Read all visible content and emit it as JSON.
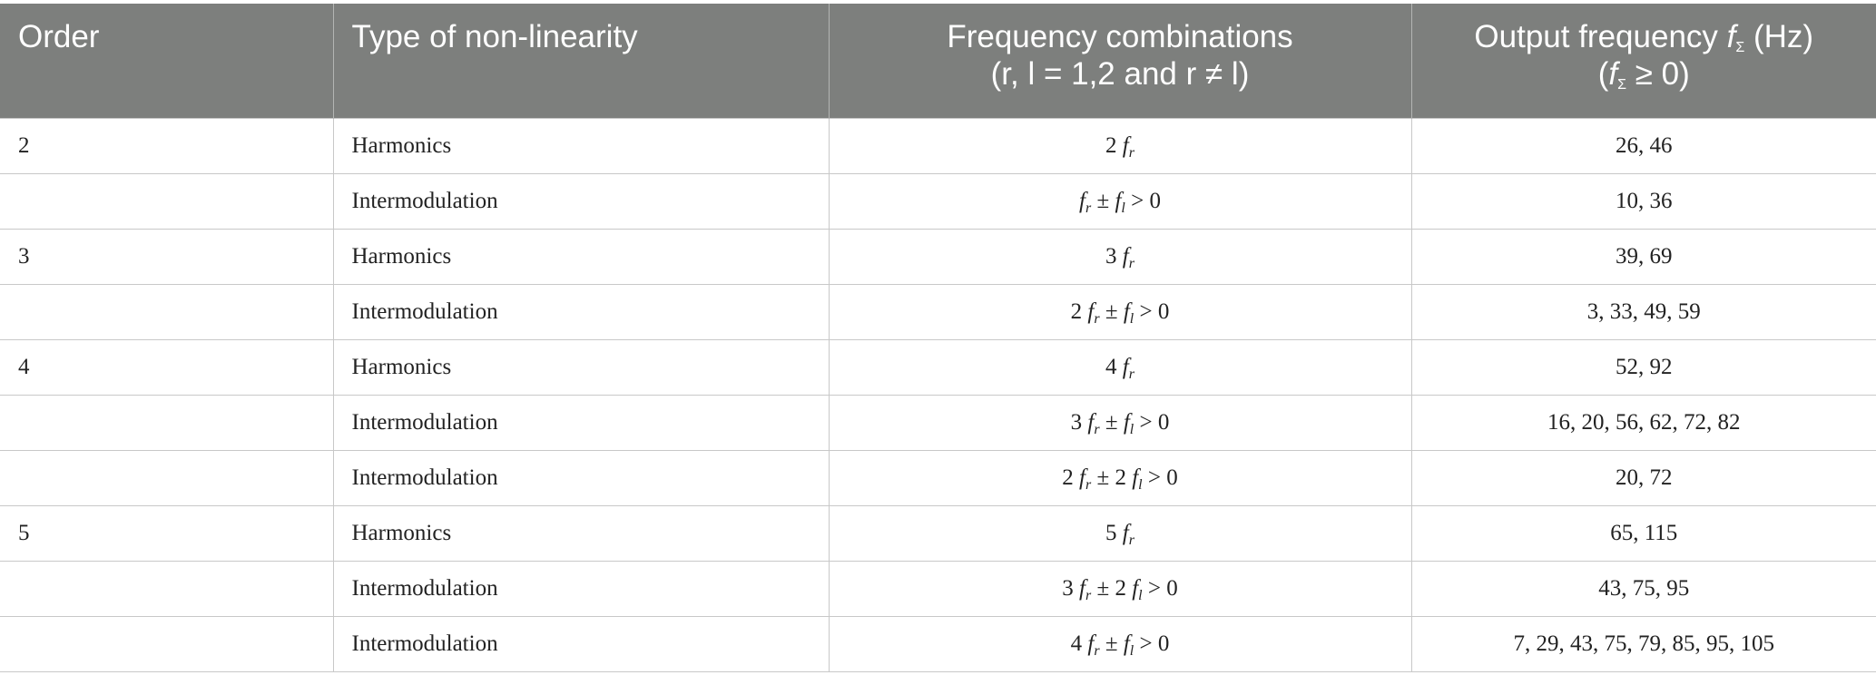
{
  "headers": {
    "order": "Order",
    "type": "Type of non-linearity",
    "freq_line1": "Frequency combinations",
    "freq_line2": "(r, l = 1,2 and r ≠ l)",
    "out_pre": "Output frequency ",
    "out_sym": "f",
    "out_sub": "Σ",
    "out_post": " (Hz)",
    "out_line2_pre": "(",
    "out_line2_post": " ≥ 0)"
  },
  "rows": [
    {
      "order": "2",
      "type": "Harmonics",
      "combo": {
        "c1": "2 ",
        "op": "",
        "c2": "",
        "tail": ""
      },
      "output": "26, 46"
    },
    {
      "order": "",
      "type": "Intermodulation",
      "combo": {
        "c1": "",
        "op": " ± ",
        "c2": "",
        "tail": " > 0"
      },
      "output": "10, 36"
    },
    {
      "order": "3",
      "type": "Harmonics",
      "combo": {
        "c1": "3 ",
        "op": "",
        "c2": "",
        "tail": ""
      },
      "output": "39, 69"
    },
    {
      "order": "",
      "type": "Intermodulation",
      "combo": {
        "c1": "2 ",
        "op": " ± ",
        "c2": "",
        "tail": " > 0"
      },
      "output": "3, 33, 49, 59"
    },
    {
      "order": "4",
      "type": "Harmonics",
      "combo": {
        "c1": "4 ",
        "op": "",
        "c2": "",
        "tail": ""
      },
      "output": "52, 92"
    },
    {
      "order": "",
      "type": "Intermodulation",
      "combo": {
        "c1": "3 ",
        "op": " ± ",
        "c2": "",
        "tail": " > 0"
      },
      "output": "16, 20, 56, 62, 72, 82"
    },
    {
      "order": "",
      "type": "Intermodulation",
      "combo": {
        "c1": "2 ",
        "op": " ± ",
        "c2": "2 ",
        "tail": " > 0"
      },
      "output": "20, 72"
    },
    {
      "order": "5",
      "type": "Harmonics",
      "combo": {
        "c1": "5 ",
        "op": "",
        "c2": "",
        "tail": ""
      },
      "output": "65, 115"
    },
    {
      "order": "",
      "type": "Intermodulation",
      "combo": {
        "c1": "3 ",
        "op": " ± ",
        "c2": "2 ",
        "tail": " > 0"
      },
      "output": "43, 75, 95"
    },
    {
      "order": "",
      "type": "Intermodulation",
      "combo": {
        "c1": "4 ",
        "op": " ± ",
        "c2": "",
        "tail": " > 0"
      },
      "output": "7, 29, 43, 75, 79, 85, 95, 105"
    }
  ],
  "symbols": {
    "f": "f",
    "sub_r": "r",
    "sub_l": "l"
  }
}
